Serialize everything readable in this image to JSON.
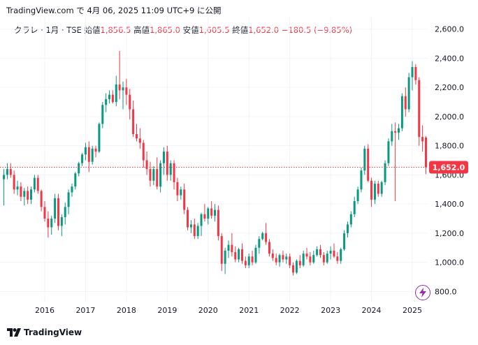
{
  "header": {
    "text": "TradingView.com で 4月 06, 2025 11:09 UTC+9 に公開"
  },
  "legend": {
    "symbol": "クラレ · 1月 · TSE",
    "open_label": "始値",
    "open": "1,856.5",
    "high_label": "高値",
    "high": "1,865.0",
    "low_label": "安値",
    "low": "1,605.5",
    "close_label": "終値",
    "close": "1,652.0",
    "change": "−180.5 (−9.85%)"
  },
  "footer": {
    "brand": "TradingView"
  },
  "icons": {
    "brand": "tradingview-logo-icon",
    "action": "lightning-icon"
  },
  "colors": {
    "up": "#089981",
    "down": "#f23645",
    "grid": "#f0f3fa",
    "text": "#131722",
    "accent": "#9c27b0"
  },
  "chart_data": {
    "type": "candlestick",
    "interval": "1M",
    "y_ticks": [
      "2,600.0",
      "2,400.0",
      "2,200.0",
      "2,000.0",
      "1,800.0",
      "1,600.0",
      "1,400.0",
      "1,200.0",
      "1,000.0",
      "800.0"
    ],
    "y_tick_values": [
      2600,
      2400,
      2200,
      2000,
      1800,
      1600,
      1400,
      1200,
      1000,
      800
    ],
    "ylim": [
      730,
      2680
    ],
    "x_ticks": [
      "2016",
      "2017",
      "2018",
      "2019",
      "2020",
      "2021",
      "2022",
      "2023",
      "2024",
      "2025"
    ],
    "start": "2015-01",
    "last_price": 1652.0,
    "last_price_label": "1,652.0",
    "ohlc": [
      [
        1570,
        1640,
        1390,
        1600
      ],
      [
        1600,
        1680,
        1570,
        1640
      ],
      [
        1640,
        1680,
        1580,
        1600
      ],
      [
        1600,
        1630,
        1470,
        1500
      ],
      [
        1500,
        1560,
        1460,
        1520
      ],
      [
        1520,
        1550,
        1420,
        1450
      ],
      [
        1450,
        1510,
        1390,
        1490
      ],
      [
        1490,
        1520,
        1400,
        1430
      ],
      [
        1430,
        1520,
        1400,
        1500
      ],
      [
        1500,
        1600,
        1480,
        1580
      ],
      [
        1580,
        1600,
        1470,
        1490
      ],
      [
        1490,
        1500,
        1350,
        1380
      ],
      [
        1380,
        1420,
        1280,
        1300
      ],
      [
        1300,
        1350,
        1170,
        1240
      ],
      [
        1240,
        1320,
        1190,
        1300
      ],
      [
        1300,
        1470,
        1270,
        1440
      ],
      [
        1440,
        1470,
        1220,
        1250
      ],
      [
        1250,
        1330,
        1180,
        1310
      ],
      [
        1310,
        1410,
        1260,
        1380
      ],
      [
        1380,
        1500,
        1330,
        1480
      ],
      [
        1480,
        1540,
        1450,
        1520
      ],
      [
        1520,
        1620,
        1500,
        1610
      ],
      [
        1610,
        1690,
        1590,
        1680
      ],
      [
        1680,
        1750,
        1660,
        1740
      ],
      [
        1740,
        1820,
        1700,
        1790
      ],
      [
        1790,
        1830,
        1620,
        1690
      ],
      [
        1690,
        1800,
        1670,
        1780
      ],
      [
        1780,
        1800,
        1720,
        1760
      ],
      [
        1760,
        1960,
        1750,
        1950
      ],
      [
        1950,
        2100,
        1920,
        2080
      ],
      [
        2080,
        2160,
        2030,
        2120
      ],
      [
        2120,
        2180,
        2090,
        2150
      ],
      [
        2150,
        2180,
        2090,
        2100
      ],
      [
        2100,
        2280,
        2070,
        2220
      ],
      [
        2220,
        2450,
        2120,
        2180
      ],
      [
        2180,
        2240,
        2050,
        2200
      ],
      [
        2200,
        2260,
        2080,
        2150
      ],
      [
        2150,
        2190,
        1980,
        2050
      ],
      [
        2050,
        2110,
        1860,
        1880
      ],
      [
        1880,
        1950,
        1830,
        1850
      ],
      [
        1850,
        1920,
        1780,
        1820
      ],
      [
        1820,
        1840,
        1650,
        1700
      ],
      [
        1700,
        1760,
        1600,
        1640
      ],
      [
        1640,
        1690,
        1520,
        1560
      ],
      [
        1560,
        1660,
        1530,
        1640
      ],
      [
        1640,
        1720,
        1500,
        1520
      ],
      [
        1520,
        1700,
        1480,
        1680
      ],
      [
        1680,
        1790,
        1600,
        1760
      ],
      [
        1760,
        1800,
        1560,
        1600
      ],
      [
        1600,
        1700,
        1560,
        1680
      ],
      [
        1680,
        1700,
        1500,
        1550
      ],
      [
        1550,
        1580,
        1420,
        1460
      ],
      [
        1460,
        1520,
        1430,
        1500
      ],
      [
        1500,
        1540,
        1330,
        1360
      ],
      [
        1360,
        1380,
        1220,
        1240
      ],
      [
        1240,
        1290,
        1200,
        1260
      ],
      [
        1260,
        1300,
        1160,
        1180
      ],
      [
        1180,
        1270,
        1160,
        1250
      ],
      [
        1250,
        1340,
        1180,
        1330
      ],
      [
        1330,
        1400,
        1280,
        1300
      ],
      [
        1300,
        1380,
        1260,
        1370
      ],
      [
        1370,
        1420,
        1300,
        1320
      ],
      [
        1320,
        1400,
        1280,
        1360
      ],
      [
        1360,
        1390,
        1150,
        1180
      ],
      [
        1180,
        1200,
        940,
        990
      ],
      [
        990,
        1100,
        920,
        1080
      ],
      [
        1080,
        1150,
        1030,
        1120
      ],
      [
        1120,
        1200,
        1040,
        1070
      ],
      [
        1070,
        1110,
        1000,
        1020
      ],
      [
        1020,
        1100,
        1000,
        1090
      ],
      [
        1090,
        1130,
        990,
        1010
      ],
      [
        1010,
        1040,
        960,
        980
      ],
      [
        980,
        1060,
        960,
        1040
      ],
      [
        1040,
        1080,
        980,
        1000
      ],
      [
        1000,
        1120,
        990,
        1100
      ],
      [
        1100,
        1180,
        1060,
        1160
      ],
      [
        1160,
        1210,
        1150,
        1200
      ],
      [
        1200,
        1270,
        1120,
        1140
      ],
      [
        1140,
        1160,
        1040,
        1060
      ],
      [
        1060,
        1090,
        1010,
        1030
      ],
      [
        1030,
        1060,
        980,
        1000
      ],
      [
        1000,
        1060,
        970,
        1050
      ],
      [
        1050,
        1080,
        1000,
        1020
      ],
      [
        1020,
        1060,
        990,
        1040
      ],
      [
        1040,
        1060,
        960,
        980
      ],
      [
        980,
        1000,
        910,
        930
      ],
      [
        930,
        1020,
        920,
        1010
      ],
      [
        1010,
        1050,
        960,
        980
      ],
      [
        980,
        1080,
        970,
        1060
      ],
      [
        1060,
        1100,
        1020,
        1040
      ],
      [
        1040,
        1070,
        980,
        1000
      ],
      [
        1000,
        1080,
        990,
        1050
      ],
      [
        1050,
        1110,
        1040,
        1090
      ],
      [
        1090,
        1120,
        1030,
        1050
      ],
      [
        1050,
        1070,
        980,
        1000
      ],
      [
        1000,
        1080,
        990,
        1060
      ],
      [
        1060,
        1110,
        1020,
        1080
      ],
      [
        1080,
        1130,
        1030,
        1040
      ],
      [
        1040,
        1070,
        990,
        1010
      ],
      [
        1010,
        1100,
        990,
        1090
      ],
      [
        1090,
        1220,
        1080,
        1200
      ],
      [
        1200,
        1280,
        1170,
        1260
      ],
      [
        1260,
        1350,
        1240,
        1330
      ],
      [
        1330,
        1450,
        1310,
        1420
      ],
      [
        1420,
        1520,
        1400,
        1500
      ],
      [
        1500,
        1650,
        1480,
        1630
      ],
      [
        1630,
        1800,
        1600,
        1780
      ],
      [
        1780,
        1810,
        1550,
        1560
      ],
      [
        1560,
        1580,
        1380,
        1430
      ],
      [
        1430,
        1560,
        1400,
        1540
      ],
      [
        1540,
        1560,
        1450,
        1470
      ],
      [
        1470,
        1560,
        1450,
        1550
      ],
      [
        1550,
        1700,
        1530,
        1680
      ],
      [
        1680,
        1850,
        1660,
        1830
      ],
      [
        1830,
        1950,
        1800,
        1900
      ],
      [
        1900,
        1960,
        1420,
        1890
      ],
      [
        1890,
        1950,
        1840,
        1920
      ],
      [
        1920,
        2160,
        1900,
        2140
      ],
      [
        2140,
        2200,
        2000,
        2050
      ],
      [
        2050,
        2300,
        2030,
        2270
      ],
      [
        2270,
        2380,
        2180,
        2340
      ],
      [
        2340,
        2360,
        2220,
        2250
      ],
      [
        2250,
        2270,
        1800,
        1860
      ],
      [
        1860,
        1940,
        1760,
        1830
      ],
      [
        1856.5,
        1865.0,
        1605.5,
        1652.0
      ]
    ]
  }
}
